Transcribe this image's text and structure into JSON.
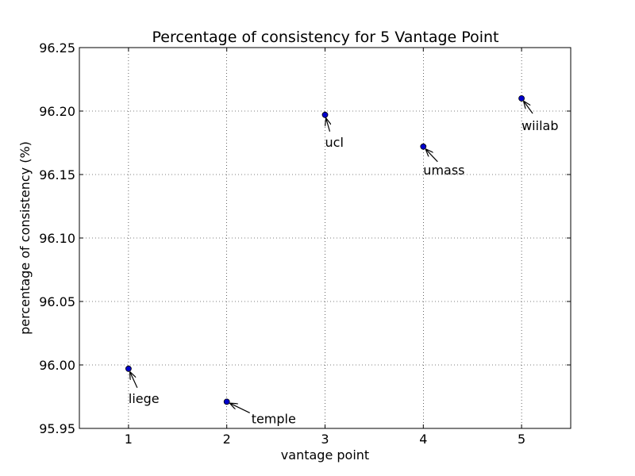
{
  "chart_data": {
    "type": "scatter",
    "title": "Percentage of consistency for 5 Vantage Point",
    "xlabel": "vantage point",
    "ylabel": "percentage of consistency (%)",
    "xlim": [
      0.5,
      5.5
    ],
    "ylim": [
      95.95,
      96.25
    ],
    "xticks": [
      1,
      2,
      3,
      4,
      5
    ],
    "xtick_labels": [
      "1",
      "2",
      "3",
      "4",
      "5"
    ],
    "yticks": [
      95.95,
      96.0,
      96.05,
      96.1,
      96.15,
      96.2,
      96.25
    ],
    "ytick_labels": [
      "95.95",
      "96.00",
      "96.05",
      "96.10",
      "96.15",
      "96.20",
      "96.25"
    ],
    "grid": true,
    "marker_color": "#0000cc",
    "points": [
      {
        "x": 1,
        "y": 95.997,
        "label": "liege"
      },
      {
        "x": 2,
        "y": 95.971,
        "label": "temple"
      },
      {
        "x": 3,
        "y": 96.197,
        "label": "ucl"
      },
      {
        "x": 4,
        "y": 96.172,
        "label": "umass"
      },
      {
        "x": 5,
        "y": 96.21,
        "label": "wiilab"
      }
    ]
  }
}
